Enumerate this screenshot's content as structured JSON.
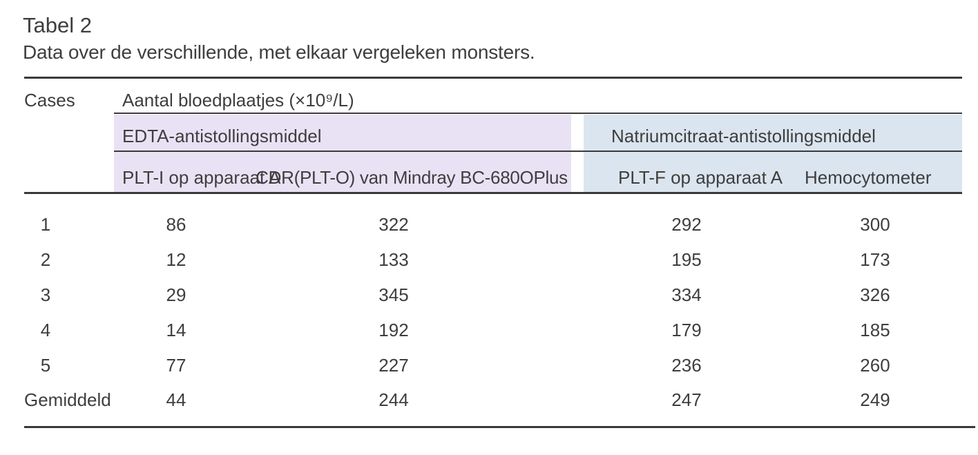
{
  "title": "Tabel 2",
  "subtitle": "Data over de verschillende, met elkaar vergeleken monsters.",
  "table": {
    "cases_header": "Cases",
    "unit_header": "Aantal bloedplaatjes (×10⁹/L)",
    "groups": [
      {
        "label": "EDTA-antistollingsmiddel",
        "color": "#E9E2F5",
        "columns": [
          "PLT-I op apparaat A",
          "CDR(PLT-O) van Mindray BC-680OPlus"
        ]
      },
      {
        "label": "Natriumcitraat-antistollingsmiddel",
        "color": "#DBE5EF",
        "columns": [
          "PLT-F op apparaat A",
          "Hemocytometer"
        ]
      }
    ],
    "rows": [
      {
        "case": "1",
        "values": [
          "86",
          "322",
          "292",
          "300"
        ]
      },
      {
        "case": "2",
        "values": [
          "12",
          "133",
          "195",
          "173"
        ]
      },
      {
        "case": "3",
        "values": [
          "29",
          "345",
          "334",
          "326"
        ]
      },
      {
        "case": "4",
        "values": [
          "14",
          "192",
          "179",
          "185"
        ]
      },
      {
        "case": "5",
        "values": [
          "77",
          "227",
          "236",
          "260"
        ]
      },
      {
        "case": "Gemiddeld",
        "values": [
          "44",
          "244",
          "247",
          "249"
        ]
      }
    ]
  },
  "colors": {
    "text": "#3E3E3E",
    "rule": "#3A3A3A",
    "edta_background": "#E9E2F5",
    "citrate_background": "#DBE5EF"
  }
}
